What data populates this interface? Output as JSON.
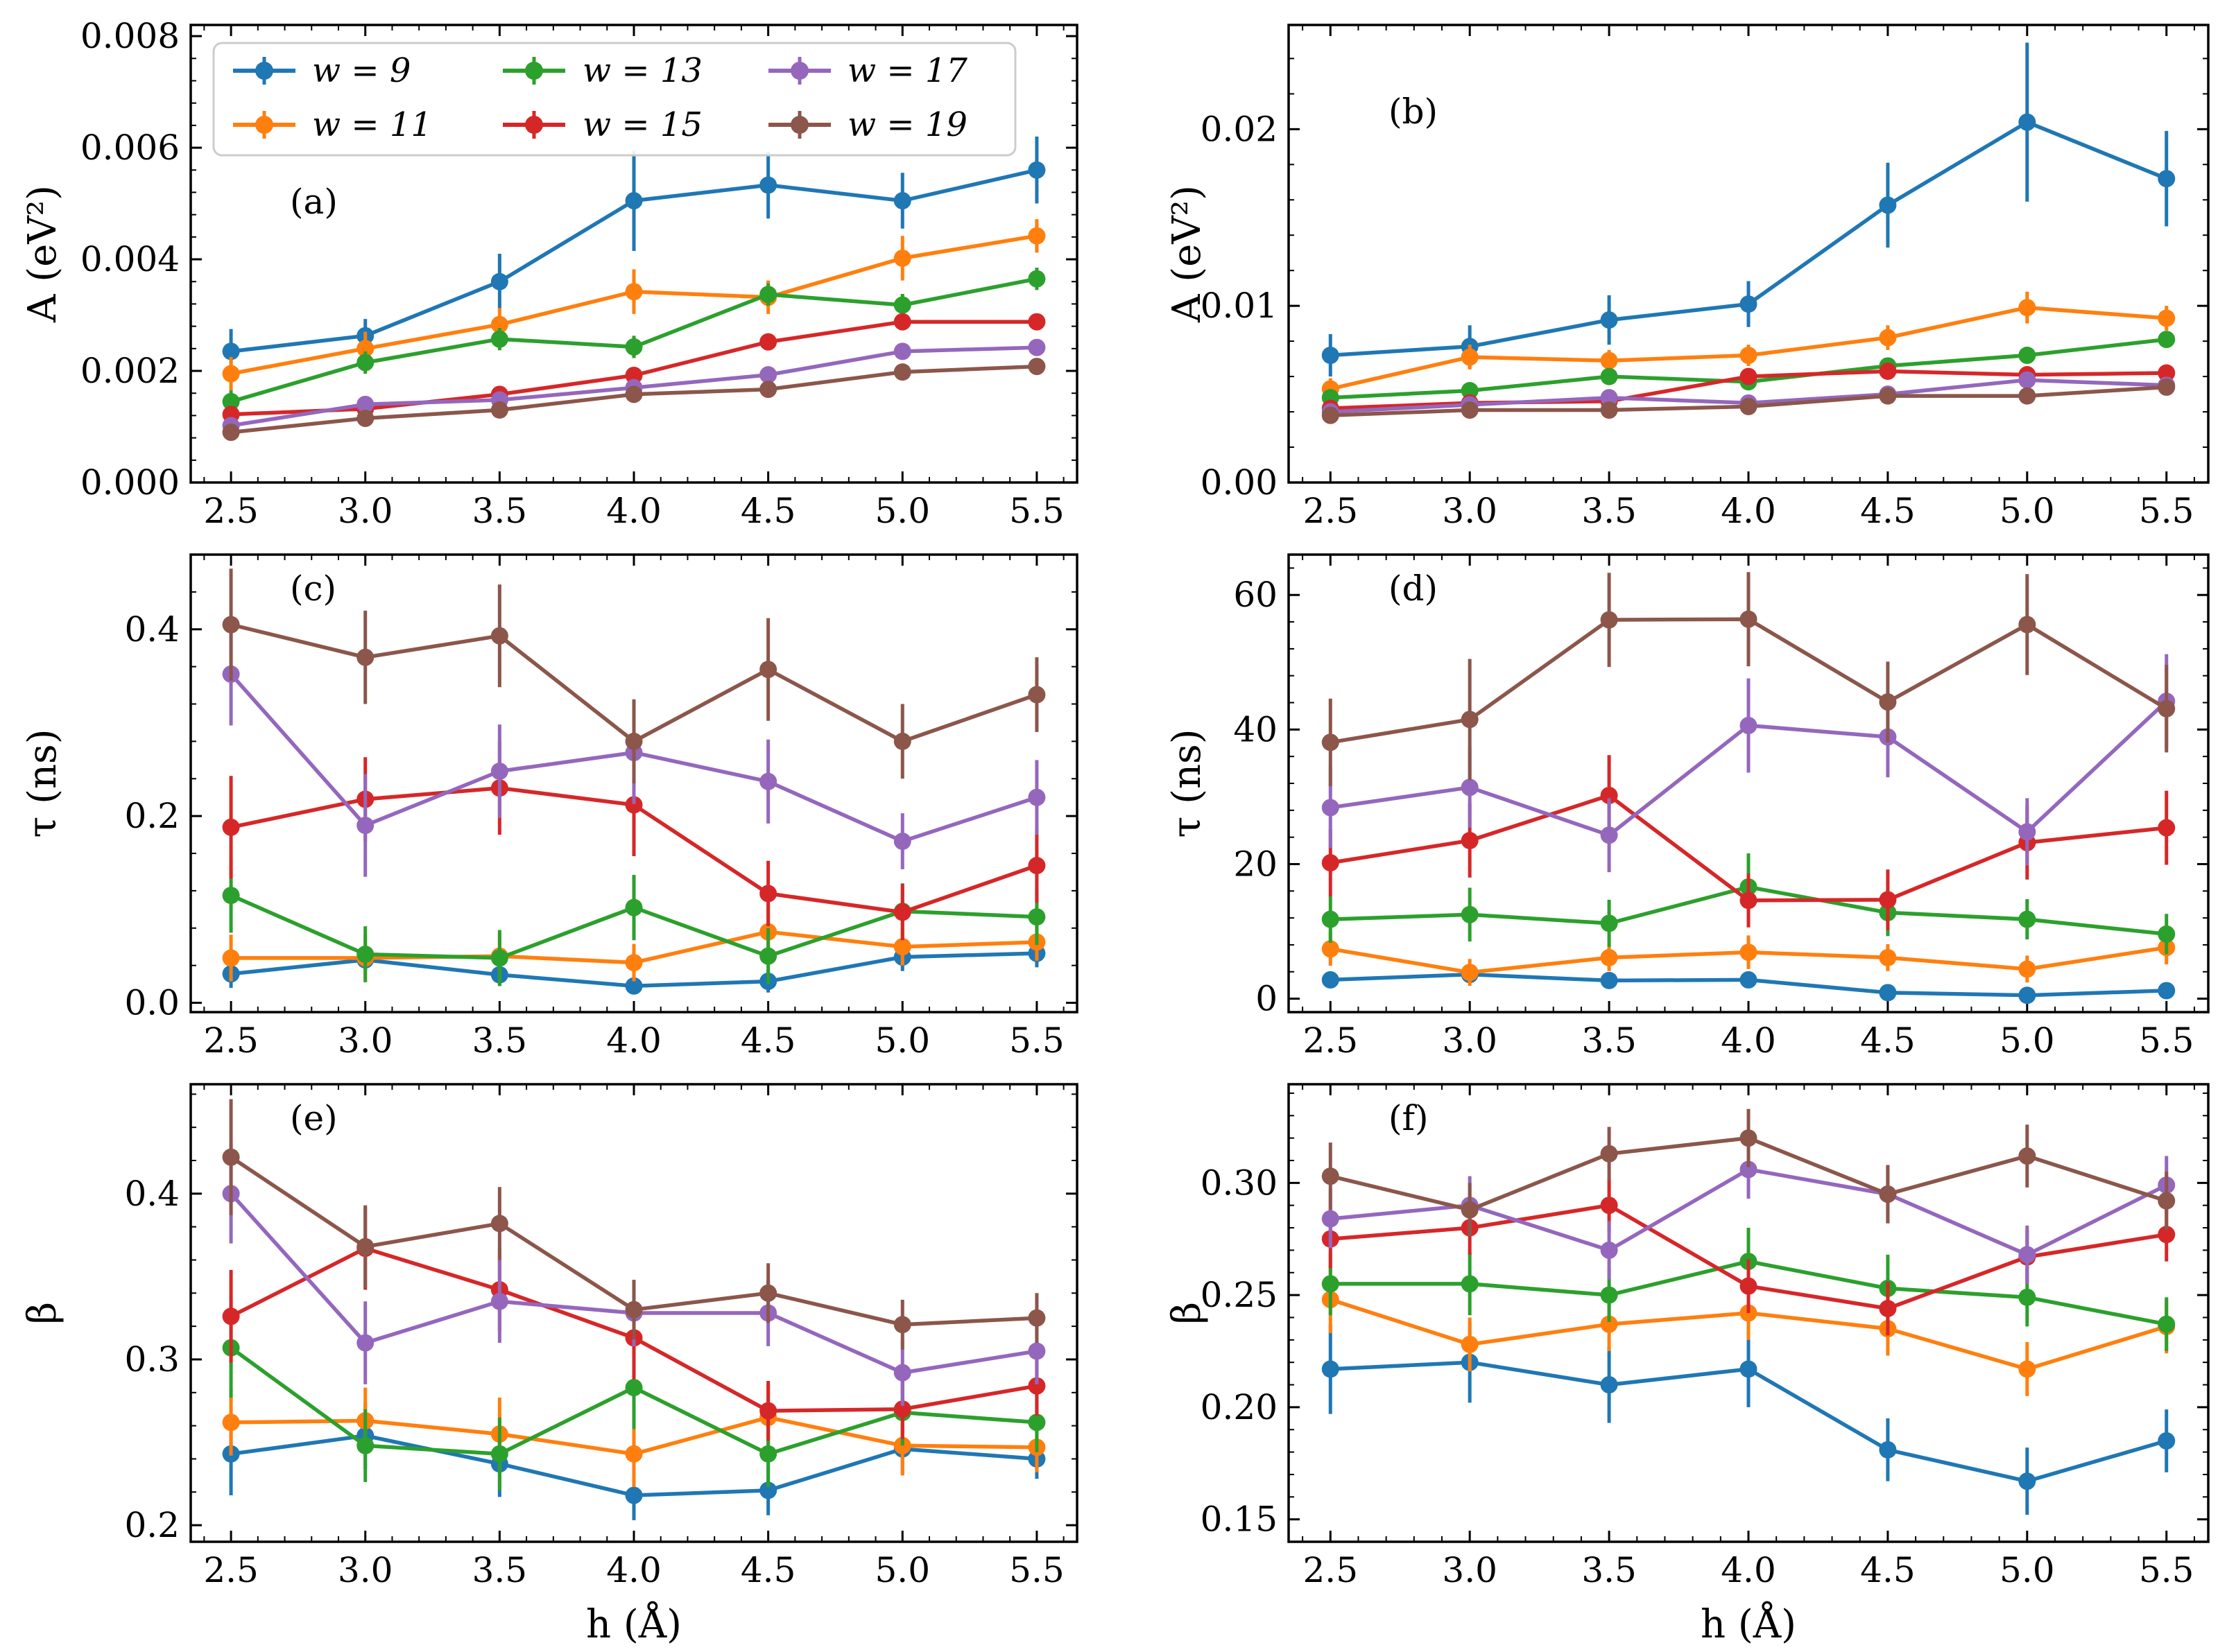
{
  "figure": {
    "xlabel": "h (Å)"
  },
  "legend": {
    "entries": [
      {
        "label": "w = 9",
        "color": "#1f77b4"
      },
      {
        "label": "w = 11",
        "color": "#ff7f0e"
      },
      {
        "label": "w = 13",
        "color": "#2ca02c"
      },
      {
        "label": "w = 15",
        "color": "#d62728"
      },
      {
        "label": "w = 17",
        "color": "#9467bd"
      },
      {
        "label": "w = 19",
        "color": "#8c564b"
      }
    ]
  },
  "chart_data": [
    {
      "type": "line",
      "panel": "(a)",
      "ylabel": "A (eV²)",
      "xlabel": "",
      "x": [
        2.5,
        3.0,
        3.5,
        4.0,
        4.5,
        5.0,
        5.5
      ],
      "xlim": [
        2.35,
        5.65
      ],
      "ylim": [
        0,
        0.0082
      ],
      "yticks": [
        0.0,
        0.002,
        0.004,
        0.006,
        0.008
      ],
      "ytick_labels": [
        "0.000",
        "0.002",
        "0.004",
        "0.006",
        "0.008"
      ],
      "series": [
        {
          "name": "w = 9",
          "values": [
            0.00235,
            0.00263,
            0.0036,
            0.00505,
            0.00533,
            0.00505,
            0.0056
          ],
          "errors": [
            0.0004,
            0.0003,
            0.0005,
            0.0009,
            0.0006,
            0.0005,
            0.0006
          ]
        },
        {
          "name": "w = 11",
          "values": [
            0.00195,
            0.0024,
            0.00283,
            0.00342,
            0.00332,
            0.00402,
            0.00442
          ],
          "errors": [
            0.0003,
            0.0003,
            0.0003,
            0.0004,
            0.0003,
            0.0004,
            0.0003
          ]
        },
        {
          "name": "w = 13",
          "values": [
            0.00145,
            0.00215,
            0.00257,
            0.00243,
            0.00337,
            0.00318,
            0.00365
          ],
          "errors": [
            0.0002,
            0.0002,
            0.0002,
            0.0002,
            0.0002,
            0.0002,
            0.0002
          ]
        },
        {
          "name": "w = 15",
          "values": [
            0.00122,
            0.00132,
            0.00158,
            0.00192,
            0.00252,
            0.00288,
            0.00288
          ],
          "errors": [
            0.0001,
            0.0001,
            0.0001,
            0.0001,
            0.0001,
            0.0001,
            0.0001
          ]
        },
        {
          "name": "w = 17",
          "values": [
            0.00102,
            0.0014,
            0.00148,
            0.0017,
            0.00193,
            0.00235,
            0.00242
          ],
          "errors": [
            0.0001,
            0.0001,
            0.0001,
            0.0001,
            0.0001,
            0.0001,
            0.0001
          ]
        },
        {
          "name": "w = 19",
          "values": [
            0.0009,
            0.00115,
            0.0013,
            0.00158,
            0.00167,
            0.00198,
            0.00208
          ],
          "errors": [
            0.0001,
            0.0001,
            0.0001,
            0.0001,
            0.0001,
            0.0001,
            0.0001
          ]
        }
      ]
    },
    {
      "type": "line",
      "panel": "(b)",
      "ylabel": "A (eV²)",
      "xlabel": "",
      "x": [
        2.5,
        3.0,
        3.5,
        4.0,
        4.5,
        5.0,
        5.5
      ],
      "xlim": [
        2.35,
        5.65
      ],
      "ylim": [
        0,
        0.0259
      ],
      "yticks": [
        0.0,
        0.01,
        0.02
      ],
      "ytick_labels": [
        "0.00",
        "0.01",
        "0.02"
      ],
      "series": [
        {
          "name": "w = 9",
          "values": [
            0.0072,
            0.0077,
            0.0092,
            0.0101,
            0.0157,
            0.0204,
            0.0172
          ],
          "errors": [
            0.0012,
            0.0012,
            0.0014,
            0.0013,
            0.0024,
            0.0045,
            0.0027
          ]
        },
        {
          "name": "w = 11",
          "values": [
            0.0053,
            0.0071,
            0.0069,
            0.0072,
            0.0082,
            0.0099,
            0.0093
          ],
          "errors": [
            0.0006,
            0.0007,
            0.0006,
            0.0006,
            0.0007,
            0.0009,
            0.0007
          ]
        },
        {
          "name": "w = 13",
          "values": [
            0.0048,
            0.0052,
            0.006,
            0.0057,
            0.0066,
            0.0072,
            0.0081
          ],
          "errors": [
            0.0004,
            0.0004,
            0.0004,
            0.0004,
            0.0004,
            0.0004,
            0.0004
          ]
        },
        {
          "name": "w = 15",
          "values": [
            0.0042,
            0.0045,
            0.0046,
            0.006,
            0.0063,
            0.0061,
            0.0062
          ],
          "errors": [
            0.0003,
            0.0003,
            0.0003,
            0.0003,
            0.0003,
            0.0003,
            0.0003
          ]
        },
        {
          "name": "w = 17",
          "values": [
            0.004,
            0.0044,
            0.0048,
            0.0045,
            0.005,
            0.0058,
            0.0055
          ],
          "errors": [
            0.0003,
            0.0003,
            0.0003,
            0.0003,
            0.0003,
            0.0003,
            0.0003
          ]
        },
        {
          "name": "w = 19",
          "values": [
            0.0038,
            0.0041,
            0.0041,
            0.0043,
            0.0049,
            0.0049,
            0.0054
          ],
          "errors": [
            0.0003,
            0.0003,
            0.0003,
            0.0003,
            0.0003,
            0.0003,
            0.0003
          ]
        }
      ]
    },
    {
      "type": "line",
      "panel": "(c)",
      "ylabel": "τ (ns)",
      "xlabel": "",
      "x": [
        2.5,
        3.0,
        3.5,
        4.0,
        4.5,
        5.0,
        5.5
      ],
      "xlim": [
        2.35,
        5.65
      ],
      "ylim": [
        -0.01,
        0.48
      ],
      "yticks": [
        0.0,
        0.2,
        0.4
      ],
      "ytick_labels": [
        "0.0",
        "0.2",
        "0.4"
      ],
      "series": [
        {
          "name": "w = 9",
          "values": [
            0.031,
            0.046,
            0.03,
            0.018,
            0.023,
            0.049,
            0.053
          ],
          "errors": [
            0.015,
            0.012,
            0.012,
            0.008,
            0.012,
            0.015,
            0.015
          ]
        },
        {
          "name": "w = 11",
          "values": [
            0.048,
            0.048,
            0.05,
            0.043,
            0.076,
            0.06,
            0.065
          ],
          "errors": [
            0.025,
            0.025,
            0.025,
            0.02,
            0.03,
            0.02,
            0.02
          ]
        },
        {
          "name": "w = 13",
          "values": [
            0.115,
            0.052,
            0.048,
            0.102,
            0.05,
            0.098,
            0.092
          ],
          "errors": [
            0.04,
            0.03,
            0.03,
            0.035,
            0.03,
            0.03,
            0.03
          ]
        },
        {
          "name": "w = 15",
          "values": [
            0.188,
            0.218,
            0.23,
            0.212,
            0.117,
            0.097,
            0.147
          ],
          "errors": [
            0.055,
            0.045,
            0.05,
            0.055,
            0.035,
            0.03,
            0.04
          ]
        },
        {
          "name": "w = 17",
          "values": [
            0.352,
            0.19,
            0.248,
            0.268,
            0.237,
            0.173,
            0.22
          ],
          "errors": [
            0.055,
            0.055,
            0.05,
            0.055,
            0.045,
            0.03,
            0.04
          ]
        },
        {
          "name": "w = 19",
          "values": [
            0.405,
            0.37,
            0.393,
            0.28,
            0.357,
            0.28,
            0.33
          ],
          "errors": [
            0.06,
            0.05,
            0.055,
            0.045,
            0.055,
            0.04,
            0.04
          ]
        }
      ]
    },
    {
      "type": "line",
      "panel": "(d)",
      "ylabel": "τ (ns)",
      "xlabel": "",
      "x": [
        2.5,
        3.0,
        3.5,
        4.0,
        4.5,
        5.0,
        5.5
      ],
      "xlim": [
        2.35,
        5.65
      ],
      "ylim": [
        -2,
        66
      ],
      "yticks": [
        0,
        20,
        40,
        60
      ],
      "ytick_labels": [
        "0",
        "20",
        "40",
        "60"
      ],
      "series": [
        {
          "name": "w = 9",
          "values": [
            2.8,
            3.6,
            2.7,
            2.8,
            0.9,
            0.5,
            1.2
          ],
          "errors": [
            1.0,
            1.0,
            0.8,
            0.8,
            0.5,
            0.5,
            0.5
          ]
        },
        {
          "name": "w = 11",
          "values": [
            7.4,
            3.9,
            6.1,
            6.9,
            6.1,
            4.4,
            7.6
          ],
          "errors": [
            2.5,
            2.0,
            2.0,
            2.5,
            2.0,
            2.0,
            2.5
          ]
        },
        {
          "name": "w = 13",
          "values": [
            11.8,
            12.5,
            11.2,
            16.6,
            12.8,
            11.8,
            9.6
          ],
          "errors": [
            3.5,
            4.0,
            3.5,
            5.0,
            3.5,
            3.0,
            3.0
          ]
        },
        {
          "name": "w = 15",
          "values": [
            20.2,
            23.5,
            30.2,
            14.6,
            14.7,
            23.2,
            25.4
          ],
          "errors": [
            5.0,
            5.5,
            6.0,
            4.0,
            4.5,
            5.5,
            5.5
          ]
        },
        {
          "name": "w = 17",
          "values": [
            28.4,
            31.4,
            24.3,
            40.6,
            38.9,
            24.8,
            44.2
          ],
          "errors": [
            6.0,
            6.0,
            5.5,
            7.0,
            6.0,
            5.0,
            7.0
          ]
        },
        {
          "name": "w = 19",
          "values": [
            38.1,
            41.5,
            56.3,
            56.4,
            44.1,
            55.6,
            43.1
          ],
          "errors": [
            6.5,
            9.0,
            7.0,
            7.0,
            6.0,
            7.5,
            6.5
          ]
        }
      ]
    },
    {
      "type": "line",
      "panel": "(e)",
      "ylabel": "β",
      "xlabel": "h (Å)",
      "x": [
        2.5,
        3.0,
        3.5,
        4.0,
        4.5,
        5.0,
        5.5
      ],
      "xlim": [
        2.35,
        5.65
      ],
      "ylim": [
        0.19,
        0.466
      ],
      "yticks": [
        0.2,
        0.3,
        0.4
      ],
      "ytick_labels": [
        "0.2",
        "0.3",
        "0.4"
      ],
      "series": [
        {
          "name": "w = 9",
          "values": [
            0.243,
            0.254,
            0.237,
            0.218,
            0.221,
            0.246,
            0.24
          ],
          "errors": [
            0.025,
            0.02,
            0.02,
            0.015,
            0.015,
            0.015,
            0.012
          ]
        },
        {
          "name": "w = 11",
          "values": [
            0.262,
            0.263,
            0.255,
            0.243,
            0.265,
            0.248,
            0.247
          ],
          "errors": [
            0.02,
            0.02,
            0.022,
            0.02,
            0.02,
            0.018,
            0.015
          ]
        },
        {
          "name": "w = 13",
          "values": [
            0.307,
            0.248,
            0.243,
            0.283,
            0.243,
            0.268,
            0.262
          ],
          "errors": [
            0.03,
            0.022,
            0.022,
            0.025,
            0.02,
            0.02,
            0.018
          ]
        },
        {
          "name": "w = 15",
          "values": [
            0.326,
            0.367,
            0.342,
            0.313,
            0.269,
            0.27,
            0.284
          ],
          "errors": [
            0.028,
            0.025,
            0.025,
            0.025,
            0.018,
            0.018,
            0.018
          ]
        },
        {
          "name": "w = 17",
          "values": [
            0.4,
            0.31,
            0.335,
            0.328,
            0.328,
            0.292,
            0.305
          ],
          "errors": [
            0.03,
            0.025,
            0.025,
            0.02,
            0.02,
            0.02,
            0.02
          ]
        },
        {
          "name": "w = 19",
          "values": [
            0.422,
            0.368,
            0.382,
            0.33,
            0.34,
            0.321,
            0.325
          ],
          "errors": [
            0.035,
            0.025,
            0.022,
            0.018,
            0.018,
            0.015,
            0.015
          ]
        }
      ]
    },
    {
      "type": "line",
      "panel": "(f)",
      "ylabel": "β",
      "xlabel": "h (Å)",
      "x": [
        2.5,
        3.0,
        3.5,
        4.0,
        4.5,
        5.0,
        5.5
      ],
      "xlim": [
        2.35,
        5.65
      ],
      "ylim": [
        0.14,
        0.344
      ],
      "yticks": [
        0.15,
        0.2,
        0.25,
        0.3
      ],
      "ytick_labels": [
        "0.15",
        "0.20",
        "0.25",
        "0.30"
      ],
      "series": [
        {
          "name": "w = 9",
          "values": [
            0.217,
            0.22,
            0.21,
            0.217,
            0.181,
            0.167,
            0.185
          ],
          "errors": [
            0.02,
            0.018,
            0.017,
            0.017,
            0.014,
            0.015,
            0.014
          ]
        },
        {
          "name": "w = 11",
          "values": [
            0.248,
            0.228,
            0.237,
            0.242,
            0.235,
            0.217,
            0.236
          ],
          "errors": [
            0.015,
            0.012,
            0.012,
            0.012,
            0.012,
            0.012,
            0.012
          ]
        },
        {
          "name": "w = 13",
          "values": [
            0.255,
            0.255,
            0.25,
            0.265,
            0.253,
            0.249,
            0.237
          ],
          "errors": [
            0.014,
            0.014,
            0.012,
            0.015,
            0.015,
            0.013,
            0.012
          ]
        },
        {
          "name": "w = 15",
          "values": [
            0.275,
            0.28,
            0.29,
            0.254,
            0.244,
            0.267,
            0.277
          ],
          "errors": [
            0.013,
            0.012,
            0.012,
            0.012,
            0.012,
            0.012,
            0.012
          ]
        },
        {
          "name": "w = 17",
          "values": [
            0.284,
            0.29,
            0.27,
            0.306,
            0.295,
            0.268,
            0.299
          ],
          "errors": [
            0.013,
            0.013,
            0.013,
            0.013,
            0.013,
            0.013,
            0.013
          ]
        },
        {
          "name": "w = 19",
          "values": [
            0.303,
            0.288,
            0.313,
            0.32,
            0.295,
            0.312,
            0.292
          ],
          "errors": [
            0.015,
            0.012,
            0.012,
            0.013,
            0.013,
            0.014,
            0.013
          ]
        }
      ]
    }
  ]
}
